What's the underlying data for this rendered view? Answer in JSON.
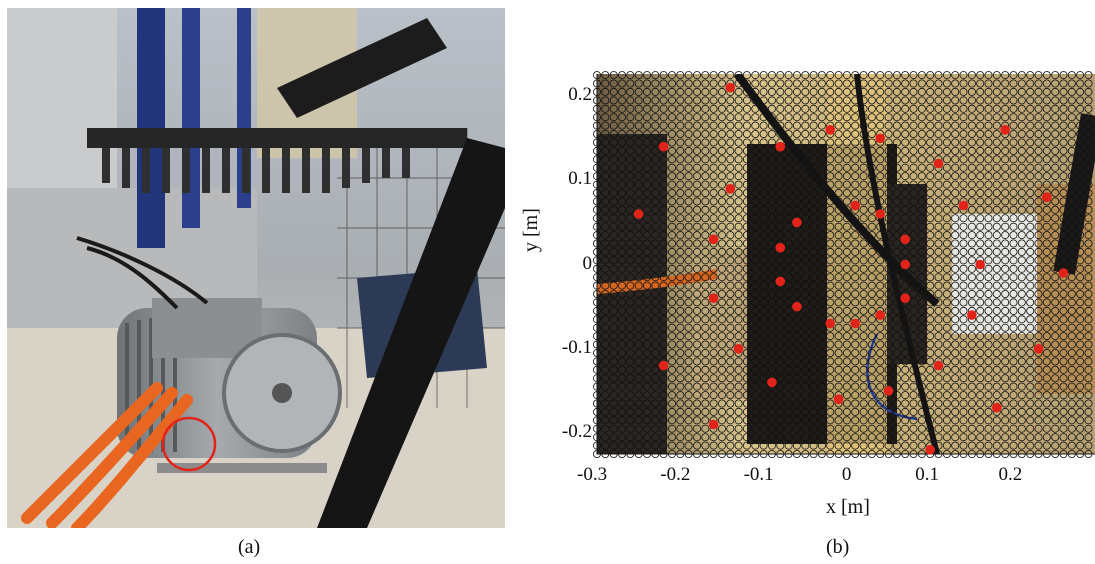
{
  "panel_a": {
    "label": "(a)",
    "image": "photo-motor-test-rig"
  },
  "panel_b": {
    "label": "(b)",
    "image": "photo-motor-top-view-with-measurement-grid",
    "xlabel": "x [m]",
    "ylabel": "y [m]",
    "x_ticks": [
      "-0.3",
      "-0.2",
      "-0.1",
      "0",
      "0.1",
      "0.2"
    ],
    "y_ticks": [
      "0.2",
      "0.1",
      "0",
      "-0.1",
      "-0.2"
    ]
  },
  "colors": {
    "marker_red": "#e2231a",
    "orange_cable": "#e8661f",
    "highlight_circle": "#e2231a"
  },
  "chart_data": {
    "type": "scatter",
    "xlim": [
      -0.3,
      0.3
    ],
    "ylim": [
      -0.225,
      0.225
    ],
    "grid_points": {
      "spacing": 0.01,
      "marker": "open-circle"
    },
    "series": [
      {
        "marker": "filled-red-dot",
        "x": [
          -0.14,
          0.19,
          -0.22,
          -0.02,
          0.04,
          -0.08,
          0.11,
          -0.14,
          0.24,
          0.01,
          0.14,
          -0.25,
          0.04,
          -0.06,
          0.07,
          -0.16,
          -0.08,
          0.16,
          0.07,
          0.26,
          -0.08,
          -0.16,
          0.07,
          -0.06,
          0.15,
          0.01,
          -0.02,
          0.04,
          -0.13,
          0.23,
          0.11,
          -0.22,
          -0.09,
          0.05,
          -0.01,
          0.18,
          -0.16,
          0.1
        ],
        "y": [
          0.21,
          0.16,
          0.14,
          0.16,
          0.15,
          0.14,
          0.12,
          0.09,
          0.08,
          0.07,
          0.07,
          0.06,
          0.06,
          0.05,
          0.03,
          0.03,
          0.02,
          0.0,
          0.0,
          -0.01,
          -0.02,
          -0.04,
          -0.04,
          -0.05,
          -0.06,
          -0.07,
          -0.07,
          -0.06,
          -0.1,
          -0.1,
          -0.12,
          -0.12,
          -0.14,
          -0.15,
          -0.16,
          -0.17,
          -0.19,
          -0.22
        ]
      }
    ]
  }
}
